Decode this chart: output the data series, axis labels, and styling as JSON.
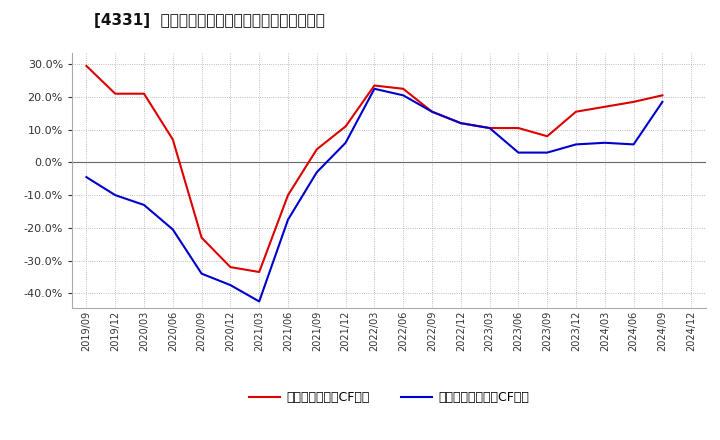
{
  "title": "[4331]  有利子負債キャッシュフロー比率の推移",
  "legend_labels": [
    "有利子負債営業CF比率",
    "有利子負債フリーCF比率"
  ],
  "line_colors": [
    "#dd0000",
    "#0000cc"
  ],
  "background_color": "#ffffff",
  "plot_bg_color": "#ffffff",
  "grid_color": "#aaaaaa",
  "ylim": [
    -0.445,
    0.335
  ],
  "yticks": [
    0.3,
    0.2,
    0.1,
    0.0,
    -0.1,
    -0.2,
    -0.3,
    -0.4
  ],
  "dates_red": [
    "2019/09",
    "2019/12",
    "2020/03",
    "2020/06",
    "2020/09",
    "2020/12",
    "2021/03",
    "2021/06",
    "2021/09",
    "2021/12",
    "2022/03",
    "2022/06",
    "2022/09",
    "2022/12",
    "2023/03",
    "2023/06",
    "2023/09",
    "2023/12",
    "2024/03",
    "2024/06",
    "2024/09"
  ],
  "values_red": [
    0.295,
    0.21,
    0.21,
    0.07,
    -0.23,
    -0.32,
    -0.335,
    -0.1,
    0.04,
    0.11,
    0.235,
    0.225,
    0.155,
    0.12,
    0.105,
    0.105,
    0.08,
    0.155,
    0.17,
    0.185,
    0.205
  ],
  "dates_blue": [
    "2019/09",
    "2019/12",
    "2020/03",
    "2020/06",
    "2020/09",
    "2020/12",
    "2021/03",
    "2021/06",
    "2021/09",
    "2021/12",
    "2022/03",
    "2022/06",
    "2022/09",
    "2022/12",
    "2023/03",
    "2023/06",
    "2023/09",
    "2023/12",
    "2024/03",
    "2024/06",
    "2024/09"
  ],
  "values_blue": [
    -0.045,
    -0.1,
    -0.13,
    -0.205,
    -0.34,
    -0.375,
    -0.425,
    -0.175,
    -0.03,
    0.06,
    0.225,
    0.205,
    0.155,
    0.12,
    0.105,
    0.03,
    0.03,
    0.055,
    0.06,
    0.055,
    0.185
  ],
  "xtick_labels": [
    "2019/09",
    "2019/12",
    "2020/03",
    "2020/06",
    "2020/09",
    "2020/12",
    "2021/03",
    "2021/06",
    "2021/09",
    "2021/12",
    "2022/03",
    "2022/06",
    "2022/09",
    "2022/12",
    "2023/03",
    "2023/06",
    "2023/09",
    "2023/12",
    "2024/03",
    "2024/06",
    "2024/09",
    "2024/12"
  ]
}
